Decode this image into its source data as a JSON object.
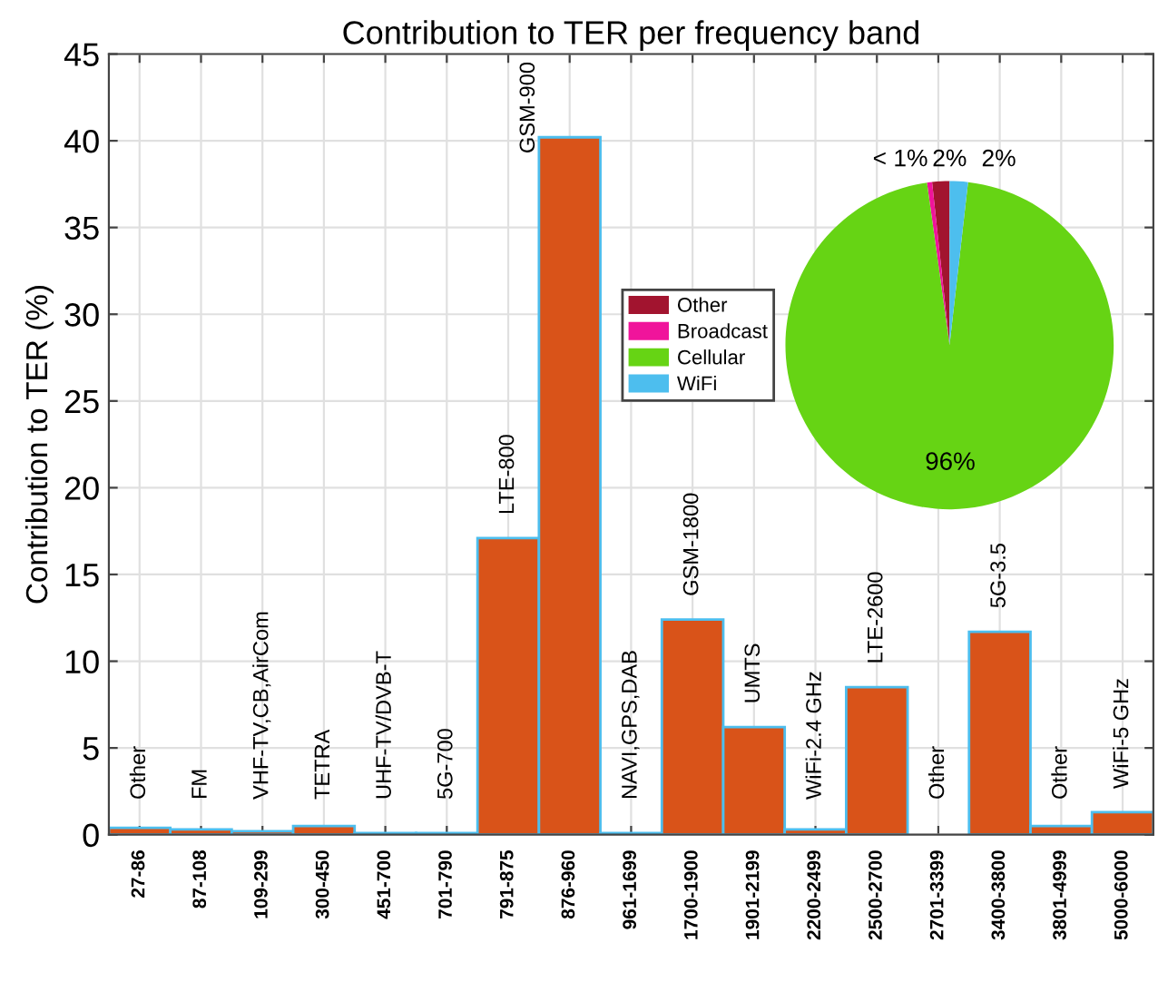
{
  "chart_data": [
    {
      "type": "bar",
      "title": "Contribution to TER per frequency band",
      "ylabel": "Contribution to TER (%)",
      "categories": [
        "27-86",
        "87-108",
        "109-299",
        "300-450",
        "451-700",
        "701-790",
        "791-875",
        "876-960",
        "961-1699",
        "1700-1900",
        "1901-2199",
        "2200-2499",
        "2500-2700",
        "2701-3399",
        "3400-3800",
        "3801-4999",
        "5000-6000"
      ],
      "values": [
        0.4,
        0.3,
        0.2,
        0.5,
        0.1,
        0.1,
        17.1,
        40.2,
        0.1,
        12.4,
        6.2,
        0.3,
        8.5,
        0,
        11.7,
        0.5,
        1.3
      ],
      "color": "#d95319",
      "ylim": [
        0,
        45
      ],
      "yticks": [
        0,
        5,
        10,
        15,
        20,
        25,
        30,
        35,
        40,
        45
      ],
      "grid": true,
      "annotations": [
        "Other",
        "FM",
        "VHF-TV,CB,AirCom",
        "TETRA",
        "UHF-TV/DVB-T",
        "5G-700",
        "LTE-800",
        "GSM-900",
        "NAVI,GPS,DAB",
        "GSM-1800",
        "UMTS",
        "WiFi-2.4 GHz",
        "LTE-2600",
        "Other",
        "5G-3.5",
        "Other",
        "WiFi-5 GHz"
      ]
    },
    {
      "type": "pie",
      "categories": [
        "Other",
        "Broadcast",
        "Cellular",
        "WiFi"
      ],
      "values": [
        1.7,
        0.5,
        96,
        1.8
      ],
      "colors": [
        "#a2142f",
        "#f0149b",
        "#66d414",
        "#4dbeee"
      ],
      "value_labels": [
        "2%",
        "< 1%",
        "96%",
        "2%"
      ],
      "legend": "left"
    }
  ]
}
